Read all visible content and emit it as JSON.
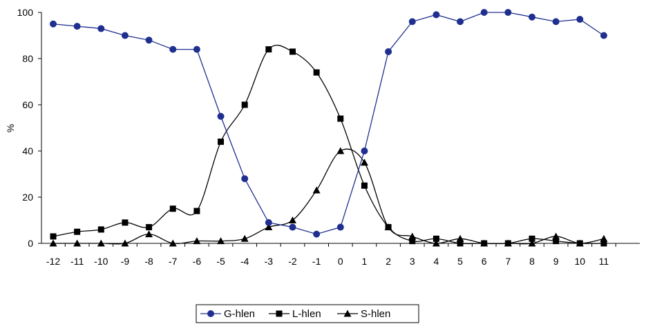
{
  "chart_data": {
    "type": "line",
    "title": "",
    "xlabel": "",
    "ylabel": "%",
    "ylim": [
      0,
      100
    ],
    "yticks": [
      0,
      20,
      40,
      60,
      80,
      100
    ],
    "ytick_labels": [
      "0",
      "20",
      "40",
      "60",
      "80",
      "100"
    ],
    "x": [
      -12,
      -11,
      -10,
      -9,
      -8,
      -7,
      -6,
      -5,
      -4,
      -3,
      -2,
      -1,
      0,
      1,
      2,
      3,
      4,
      5,
      6,
      7,
      8,
      9,
      10,
      11
    ],
    "xtick_labels": [
      "-12",
      "-11",
      "-10",
      "-9",
      "-8",
      "-7",
      "-6",
      "-5",
      "-4",
      "-3",
      "-2",
      "-1",
      "0",
      "1",
      "2",
      "3",
      "4",
      "5",
      "6",
      "7",
      "8",
      "9",
      "10",
      "11"
    ],
    "grid": false,
    "legend_position": "bottom-center",
    "series": [
      {
        "name": "G-hlen",
        "marker": "circle",
        "color": "#1f2f8f",
        "smooth": false,
        "values": [
          95,
          94,
          93,
          90,
          88,
          84,
          84,
          55,
          28,
          9,
          7,
          4,
          7,
          40,
          83,
          96,
          99,
          96,
          100,
          100,
          98,
          96,
          97,
          90
        ]
      },
      {
        "name": "L-hlen",
        "marker": "square",
        "color": "#000000",
        "smooth": true,
        "values": [
          3,
          5,
          6,
          9,
          7,
          15,
          14,
          44,
          60,
          84,
          83,
          74,
          54,
          25,
          7,
          1,
          2,
          0,
          0,
          0,
          2,
          1,
          0,
          0
        ]
      },
      {
        "name": "S-hlen",
        "marker": "triangle",
        "color": "#000000",
        "smooth": true,
        "values": [
          0,
          0,
          0,
          0,
          4,
          0,
          1,
          1,
          2,
          7,
          10,
          23,
          40,
          35,
          7,
          3,
          0,
          2,
          0,
          0,
          0,
          3,
          0,
          2
        ]
      }
    ]
  }
}
